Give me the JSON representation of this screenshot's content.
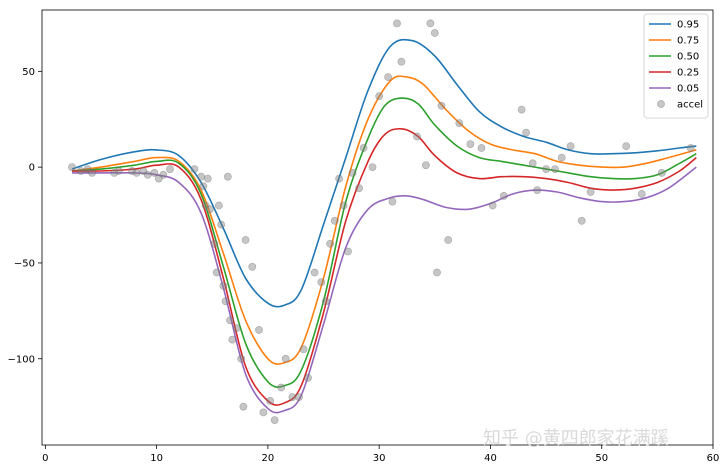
{
  "chart_data": {
    "type": "line",
    "title": "",
    "xlabel": "",
    "ylabel": "",
    "xlim": [
      -0.3,
      60
    ],
    "ylim": [
      -145,
      82
    ],
    "xticks": [
      0,
      10,
      20,
      30,
      40,
      50,
      60
    ],
    "yticks": [
      -100,
      -50,
      0,
      50
    ],
    "legend_position": "top-right",
    "grid": false,
    "series": [
      {
        "name": "0.95",
        "color": "#1f77b4",
        "x": [
          2.4,
          5,
          8,
          10,
          12,
          14,
          16,
          18,
          20,
          21.5,
          23,
          25,
          27,
          29,
          31,
          33,
          35,
          37,
          39,
          41,
          43,
          45,
          47,
          49,
          51,
          53,
          55,
          57,
          58.5
        ],
        "y": [
          -1,
          4,
          8,
          9,
          6,
          -8,
          -32,
          -58,
          -71,
          -72,
          -64,
          -30,
          5,
          40,
          63,
          66,
          58,
          43,
          29,
          21,
          16,
          13,
          9,
          7,
          7,
          7.5,
          8.5,
          10,
          11
        ]
      },
      {
        "name": "0.75",
        "color": "#ff7f0e",
        "x": [
          2.4,
          5,
          8,
          10,
          12,
          14,
          16,
          18,
          20,
          21.5,
          23,
          25,
          27,
          29,
          31,
          32.5,
          34,
          36,
          38,
          40,
          42,
          44,
          46,
          48,
          50,
          52,
          54,
          56,
          58.5
        ],
        "y": [
          -2,
          0,
          3,
          5,
          3,
          -12,
          -45,
          -80,
          -100,
          -102,
          -94,
          -58,
          -10,
          25,
          45,
          47,
          43,
          30,
          19,
          12,
          9,
          7,
          3,
          1,
          0,
          0,
          2,
          5,
          9
        ]
      },
      {
        "name": "0.50",
        "color": "#2ca02c",
        "x": [
          2.4,
          5,
          8,
          10,
          12,
          14,
          16,
          18,
          20,
          21.5,
          23,
          25,
          27,
          29,
          30.5,
          32,
          33.5,
          35,
          37,
          39,
          41,
          43,
          45,
          47,
          49,
          51,
          53,
          55,
          57,
          58.5
        ],
        "y": [
          -2,
          -1,
          1,
          3,
          2,
          -14,
          -52,
          -92,
          -112,
          -114,
          -106,
          -70,
          -18,
          15,
          32,
          36,
          33,
          22,
          11,
          5,
          3,
          1,
          -1,
          -3,
          -5,
          -6,
          -6,
          -4,
          2,
          7
        ]
      },
      {
        "name": "0.25",
        "color": "#d62728",
        "x": [
          2.4,
          5,
          8,
          10,
          12,
          14,
          16,
          18,
          20,
          21.5,
          23,
          25,
          27,
          29,
          30.5,
          32,
          33.5,
          35,
          37,
          39,
          41,
          43,
          45,
          47,
          49,
          51,
          53,
          55,
          57,
          58.5
        ],
        "y": [
          -2,
          -2,
          -1,
          1,
          0,
          -17,
          -58,
          -104,
          -122,
          -123,
          -114,
          -76,
          -28,
          3,
          17,
          20,
          16,
          6,
          -3,
          -6,
          -5,
          -5,
          -6,
          -8,
          -11,
          -12,
          -11,
          -8,
          -2,
          5
        ]
      },
      {
        "name": "0.05",
        "color": "#9467bd",
        "x": [
          2.4,
          5,
          8,
          10,
          12,
          14,
          16,
          18,
          20,
          21.5,
          23,
          25,
          27,
          29,
          31,
          32.5,
          34,
          36,
          38,
          40,
          42,
          44,
          46,
          48,
          50,
          52,
          54,
          56,
          58.5
        ],
        "y": [
          -3,
          -3,
          -3,
          -4,
          -8,
          -24,
          -63,
          -108,
          -126,
          -127,
          -119,
          -82,
          -42,
          -22,
          -16,
          -15,
          -17,
          -21,
          -22,
          -19,
          -14,
          -12,
          -13,
          -16,
          -18,
          -18,
          -16,
          -11,
          0
        ]
      },
      {
        "name": "accel",
        "type": "scatter",
        "color": "#808080",
        "x": [
          2.4,
          3.2,
          3.8,
          4.2,
          6.2,
          6.6,
          7.8,
          8.2,
          8.8,
          9.2,
          9.8,
          10.2,
          10.6,
          11.2,
          13.4,
          14.0,
          14.2,
          14.4,
          14.6,
          14.8,
          15.2,
          15.4,
          15.6,
          15.8,
          16.0,
          16.2,
          16.4,
          16.6,
          16.8,
          17.2,
          17.6,
          17.8,
          18.0,
          18.6,
          19.2,
          19.6,
          20.2,
          20.6,
          21.2,
          21.6,
          22.2,
          22.8,
          23.2,
          23.6,
          24.2,
          24.8,
          25.2,
          25.6,
          26.0,
          26.4,
          26.8,
          27.2,
          27.6,
          28.2,
          28.6,
          29.4,
          30.0,
          30.8,
          31.2,
          31.6,
          32.0,
          33.4,
          34.2,
          34.6,
          35.0,
          35.2,
          35.6,
          36.2,
          37.2,
          38.2,
          39.2,
          40.2,
          41.2,
          42.8,
          43.2,
          43.8,
          44.2,
          45.0,
          45.8,
          46.4,
          47.2,
          48.2,
          49.0,
          52.2,
          53.6,
          55.4,
          58.0
        ],
        "y": [
          0,
          -2,
          -1,
          -3,
          -3,
          -2,
          -2,
          -3,
          -2,
          -4,
          -3,
          -6,
          -4,
          -1,
          -1,
          -5,
          -10,
          -20,
          -6,
          -22,
          -40,
          -55,
          -20,
          -30,
          -62,
          -70,
          -5,
          -80,
          -90,
          -84,
          -100,
          -125,
          -38,
          -52,
          -85,
          -128,
          -122,
          -132,
          -115,
          -100,
          -120,
          -120,
          -95,
          -110,
          -55,
          -60,
          -70,
          -40,
          -28,
          -6,
          -20,
          -44,
          -3,
          -11,
          10,
          0,
          37,
          47,
          -18,
          75,
          55,
          16,
          1,
          75,
          70,
          -55,
          32,
          -38,
          23,
          12,
          10,
          -20,
          -15,
          30,
          18,
          2,
          -12,
          -1,
          -1,
          5,
          11,
          -28,
          -13,
          11,
          -14,
          -3,
          10
        ]
      }
    ]
  },
  "watermark": "知乎 @黄四郎家花满蹊"
}
